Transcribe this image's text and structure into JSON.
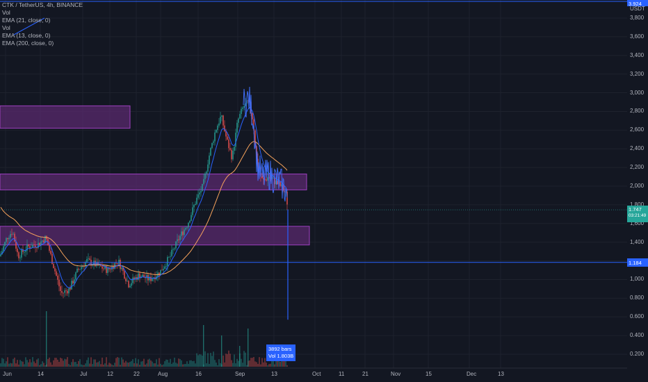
{
  "legend": {
    "symbol": "CTK / TetherUS, 4h, BINANCE",
    "items": [
      "Vol",
      "EMA (21, close, 0)",
      "Vol",
      "EMA (13, close, 0)",
      "EMA (200, close, 0)"
    ]
  },
  "axis": {
    "unit": "USDT",
    "yticks": [
      "3,800",
      "3,600",
      "3,400",
      "3,200",
      "3,000",
      "2,800",
      "2,600",
      "2,400",
      "2,200",
      "2,000",
      "1,800",
      "1,600",
      "1,400",
      "1,200",
      "1,000",
      "0.800",
      "0.600",
      "0.400",
      "0.200"
    ],
    "xticks": [
      "Jun",
      "14",
      "Jul",
      "12",
      "22",
      "Aug",
      "16",
      "Sep",
      "13",
      "Oct",
      "11",
      "21",
      "Nov",
      "15",
      "Dec",
      "13"
    ]
  },
  "tags": {
    "top_level": "3.924",
    "current_price": "1.747",
    "current_time": "03:21:49",
    "level_line": "1.184"
  },
  "volume_tooltip": {
    "bars": "3892 bars",
    "vol": "Vol 1.803B"
  },
  "colors": {
    "background": "#131722",
    "up": "#26a69a",
    "down": "#ef5350",
    "zone_fill": "#5a2a6e",
    "zone_border": "#9c3fbf",
    "line_blue": "#2962ff",
    "ema_slow": "#f7a35c"
  },
  "chart_data": {
    "type": "candlestick",
    "ylim": [
      0,
      4.0
    ],
    "price_zones": [
      {
        "low": 2.62,
        "high": 2.86,
        "from": "Jun",
        "to": "Jul 3"
      },
      {
        "low": 1.96,
        "high": 2.13,
        "from": "Jun",
        "to": "Sep 20"
      },
      {
        "low": 1.37,
        "high": 1.57,
        "from": "Jun",
        "to": "Sep 21"
      }
    ],
    "horizontal_lines": [
      3.924,
      1.184
    ],
    "current_price": 1.747,
    "spike_low": 0.57
  }
}
